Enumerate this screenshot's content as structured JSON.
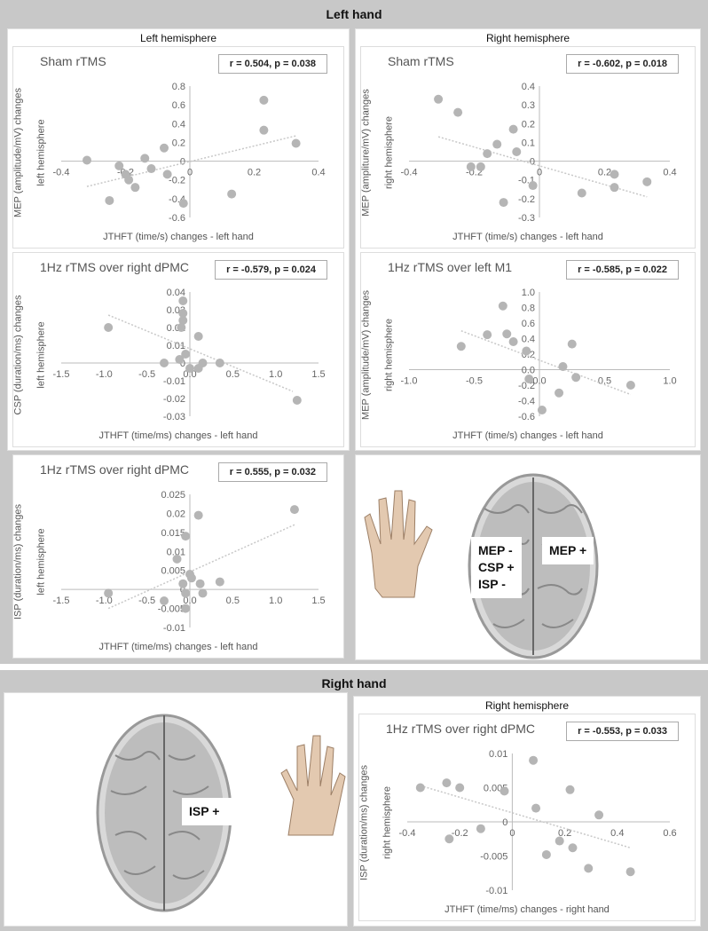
{
  "left_hand": {
    "title": "Left hand",
    "left_col": "Left hemisphere",
    "right_col": "Right hemisphere",
    "brain_labels": {
      "left_hemi": [
        "MEP -",
        "CSP +",
        "ISP -"
      ],
      "right_hemi": "MEP +"
    }
  },
  "right_hand": {
    "title": "Right hand",
    "right_col": "Right hemisphere",
    "brain_label": "ISP +"
  },
  "colors": {
    "points": "#b5b5b5",
    "trend": "#c8c8c8",
    "band": "#c8c8c8"
  },
  "chart_data": [
    {
      "id": "c1",
      "type": "scatter",
      "title": "Sham rTMS",
      "stat": "r = 0.504, p = 0.038",
      "ylabel": [
        "MEP (amplitude/mV) changes",
        "left hemisphere"
      ],
      "xlabel": "JTHFT (time/s) changes - left hand",
      "xlim": [
        -0.4,
        0.4
      ],
      "xticks": [
        -0.4,
        -0.2,
        0,
        0.2,
        0.4
      ],
      "xtick_labels": [
        "-0.4",
        "-0.2",
        "0",
        "0.2",
        "0.4"
      ],
      "ylim": [
        -0.6,
        0.8
      ],
      "yticks": [
        -0.6,
        -0.4,
        -0.2,
        0,
        0.2,
        0.4,
        0.6,
        0.8
      ],
      "ytick_labels": [
        "-0.6",
        "-0.4",
        "-0.2",
        "0",
        "0.2",
        "0.4",
        "0.6",
        "0.8"
      ],
      "points": [
        [
          -0.32,
          0.01
        ],
        [
          -0.25,
          -0.42
        ],
        [
          -0.22,
          -0.05
        ],
        [
          -0.2,
          -0.14
        ],
        [
          -0.19,
          -0.2
        ],
        [
          -0.17,
          -0.28
        ],
        [
          -0.14,
          0.03
        ],
        [
          -0.12,
          -0.08
        ],
        [
          -0.08,
          0.14
        ],
        [
          -0.07,
          -0.14
        ],
        [
          -0.02,
          -0.45
        ],
        [
          0.13,
          -0.35
        ],
        [
          0.23,
          0.65
        ],
        [
          0.23,
          0.33
        ],
        [
          0.33,
          0.19
        ]
      ],
      "trendline": [
        [
          -0.32,
          -0.27
        ],
        [
          0.33,
          0.27
        ]
      ]
    },
    {
      "id": "c2",
      "type": "scatter",
      "title": "Sham rTMS",
      "stat": "r = -0.602, p = 0.018",
      "ylabel": [
        "MEP (ampliture/mV) changes",
        "right hemisphere"
      ],
      "xlabel": "JTHFT (time/s) changes - left hand",
      "xlim": [
        -0.4,
        0.4
      ],
      "xticks": [
        -0.4,
        -0.2,
        0,
        0.2,
        0.4
      ],
      "xtick_labels": [
        "-0.4",
        "-0.2",
        "0",
        "0.2",
        "0.4"
      ],
      "ylim": [
        -0.3,
        0.4
      ],
      "yticks": [
        -0.3,
        -0.2,
        -0.1,
        0,
        0.1,
        0.2,
        0.3,
        0.4
      ],
      "ytick_labels": [
        "-0.3",
        "-0.2",
        "-0.1",
        "0",
        "0.1",
        "0.2",
        "0.3",
        "0.4"
      ],
      "points": [
        [
          -0.31,
          0.33
        ],
        [
          -0.25,
          0.26
        ],
        [
          -0.21,
          -0.03
        ],
        [
          -0.18,
          -0.03
        ],
        [
          -0.16,
          0.04
        ],
        [
          -0.13,
          0.09
        ],
        [
          -0.08,
          0.17
        ],
        [
          -0.07,
          0.05
        ],
        [
          -0.11,
          -0.22
        ],
        [
          -0.02,
          -0.13
        ],
        [
          0.13,
          -0.17
        ],
        [
          0.23,
          -0.07
        ],
        [
          0.23,
          -0.14
        ],
        [
          0.33,
          -0.11
        ]
      ],
      "trendline": [
        [
          -0.31,
          0.13
        ],
        [
          0.33,
          -0.19
        ]
      ]
    },
    {
      "id": "c3",
      "type": "scatter",
      "title": "1Hz rTMS over right dPMC",
      "stat": "r = -0.579, p = 0.024",
      "ylabel": [
        "CSP (duration/ms) changes",
        "left hemisphere"
      ],
      "xlabel": "JTHFT (time/ms) changes - left hand",
      "xlim": [
        -1.5,
        1.5
      ],
      "xticks": [
        -1.5,
        -1,
        -0.5,
        0,
        0.5,
        1,
        1.5
      ],
      "xtick_labels": [
        "-1.5",
        "-1.0",
        "-0.5",
        "0.0",
        "0.5",
        "1.0",
        "1.5"
      ],
      "ylim": [
        -0.03,
        0.04
      ],
      "yticks": [
        -0.03,
        -0.02,
        -0.01,
        0,
        0.01,
        0.02,
        0.03,
        0.04
      ],
      "ytick_labels": [
        "-0.03",
        "-0.02",
        "-0.01",
        "0",
        "0.01",
        "0.02",
        "0.03",
        "0.04"
      ],
      "points": [
        [
          -0.95,
          0.02
        ],
        [
          -0.3,
          0
        ],
        [
          -0.08,
          0.035
        ],
        [
          -0.08,
          0.028
        ],
        [
          -0.08,
          0.024
        ],
        [
          -0.1,
          0.02
        ],
        [
          -0.12,
          0.002
        ],
        [
          -0.05,
          0.005
        ],
        [
          0.0,
          -0.003
        ],
        [
          0.1,
          0.015
        ],
        [
          0.1,
          -0.003
        ],
        [
          0.15,
          0
        ],
        [
          0.35,
          0
        ],
        [
          1.25,
          -0.021
        ]
      ],
      "trendline": [
        [
          -0.95,
          0.027
        ],
        [
          1.2,
          -0.016
        ]
      ]
    },
    {
      "id": "c4",
      "type": "scatter",
      "title": "1Hz rTMS over left M1",
      "stat": "r = -0.585, p = 0.022",
      "ylabel": [
        "MEP (amplitude/mV) changes",
        "right hemisphere"
      ],
      "xlabel": "JTHFT (time/s) changes - left hand",
      "xlim": [
        -1,
        1
      ],
      "xticks": [
        -1,
        -0.5,
        0,
        0.5,
        1
      ],
      "xtick_labels": [
        "-1.0",
        "-0.5",
        "0.0",
        "0.5",
        "1.0"
      ],
      "ylim": [
        -0.6,
        1.0
      ],
      "yticks": [
        -0.6,
        -0.4,
        -0.2,
        0,
        0.2,
        0.4,
        0.6,
        0.8,
        1.0
      ],
      "ytick_labels": [
        "-0.6",
        "-0.4",
        "-0.2",
        "0.0",
        "0.2",
        "0.4",
        "0.6",
        "0.8",
        "1.0"
      ],
      "points": [
        [
          -0.6,
          0.3
        ],
        [
          -0.4,
          0.45
        ],
        [
          -0.28,
          0.82
        ],
        [
          -0.25,
          0.46
        ],
        [
          -0.2,
          0.36
        ],
        [
          -0.1,
          0.24
        ],
        [
          -0.08,
          -0.12
        ],
        [
          0.02,
          -0.52
        ],
        [
          0.15,
          -0.3
        ],
        [
          0.18,
          0.04
        ],
        [
          0.25,
          0.33
        ],
        [
          0.28,
          -0.1
        ],
        [
          0.7,
          -0.2
        ]
      ],
      "trendline": [
        [
          -0.6,
          0.5
        ],
        [
          0.7,
          -0.32
        ]
      ]
    },
    {
      "id": "c5",
      "type": "scatter",
      "title": "1Hz rTMS over right dPMC",
      "stat": "r = 0.555, p = 0.032",
      "ylabel": [
        "ISP (duration/ms) changes",
        "left hemisphere"
      ],
      "xlabel": "JTHFT (time/ms) changes - left hand",
      "xlim": [
        -1.5,
        1.5
      ],
      "xticks": [
        -1.5,
        -1,
        -0.5,
        0,
        0.5,
        1,
        1.5
      ],
      "xtick_labels": [
        "-1.5",
        "-1.0",
        "-0.5",
        "0.0",
        "0.5",
        "1.0",
        "1.5"
      ],
      "ylim": [
        -0.01,
        0.025
      ],
      "yticks": [
        -0.01,
        -0.005,
        0,
        0.005,
        0.01,
        0.015,
        0.02,
        0.025
      ],
      "ytick_labels": [
        "-0.01",
        "-0.005",
        "0",
        "0.005",
        "0.01",
        "0.015",
        "0.02",
        "0.025"
      ],
      "points": [
        [
          -0.95,
          -0.001
        ],
        [
          -0.3,
          -0.003
        ],
        [
          -0.15,
          0.008
        ],
        [
          -0.08,
          0.0015
        ],
        [
          -0.05,
          0.014
        ],
        [
          -0.05,
          -0.001
        ],
        [
          -0.05,
          -0.005
        ],
        [
          0.0,
          0.004
        ],
        [
          0.02,
          0.003
        ],
        [
          0.1,
          0.0195
        ],
        [
          0.12,
          0.0015
        ],
        [
          0.15,
          -0.001
        ],
        [
          0.35,
          0.002
        ],
        [
          1.22,
          0.021
        ]
      ],
      "trendline": [
        [
          -0.95,
          -0.005
        ],
        [
          1.22,
          0.017
        ]
      ]
    },
    {
      "id": "c6",
      "type": "scatter",
      "title": "1Hz rTMS over right dPMC",
      "stat": "r = -0.553, p = 0.033",
      "ylabel": [
        "ISP (duration/ms) changes",
        "right hemisphere"
      ],
      "xlabel": "JTHFT (time/ms) changes - right hand",
      "xlim": [
        -0.4,
        0.6
      ],
      "xticks": [
        -0.4,
        -0.2,
        0,
        0.2,
        0.4,
        0.6
      ],
      "xtick_labels": [
        "-0.4",
        "-0.2",
        "0",
        "0.2",
        "0.4",
        "0.6"
      ],
      "ylim": [
        -0.01,
        0.01
      ],
      "yticks": [
        -0.01,
        -0.005,
        0,
        0.005,
        0.01
      ],
      "ytick_labels": [
        "-0.01",
        "-0.005",
        "0",
        "0.005",
        "0.01"
      ],
      "points": [
        [
          -0.35,
          0.005
        ],
        [
          -0.25,
          0.0057
        ],
        [
          -0.24,
          -0.0025
        ],
        [
          -0.2,
          0.005
        ],
        [
          -0.12,
          -0.001
        ],
        [
          -0.03,
          0.0045
        ],
        [
          0.08,
          0.009
        ],
        [
          0.09,
          0.002
        ],
        [
          0.13,
          -0.0048
        ],
        [
          0.18,
          -0.0028
        ],
        [
          0.22,
          0.0047
        ],
        [
          0.23,
          -0.0038
        ],
        [
          0.29,
          -0.0068
        ],
        [
          0.33,
          0.001
        ],
        [
          0.45,
          -0.0073
        ]
      ],
      "trendline": [
        [
          -0.35,
          0.0053
        ],
        [
          0.45,
          -0.0038
        ]
      ]
    }
  ]
}
